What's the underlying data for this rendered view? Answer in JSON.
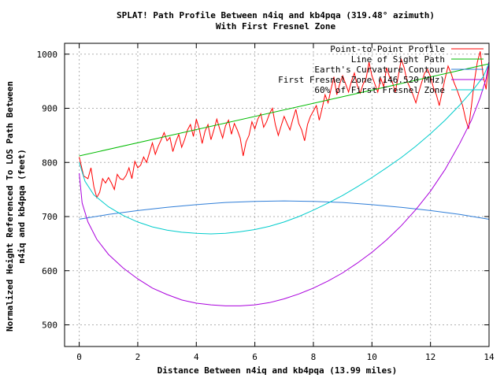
{
  "chart_data": {
    "type": "line",
    "title": "SPLAT! Path Profile Between n4iq and kb4pqa (319.48° azimuth)",
    "subtitle": "With First Fresnel Zone",
    "xlabel": "Distance Between n4iq and kb4pqa (13.99 miles)",
    "ylabel_line1": "Normalized Height Referenced To LOS Path Between",
    "ylabel_line2": "n4iq and kb4pqa (feet)",
    "xlim": [
      -0.5,
      14
    ],
    "ylim": [
      460,
      1020
    ],
    "xticks": [
      0,
      2,
      4,
      6,
      8,
      10,
      12,
      14
    ],
    "yticks": [
      500,
      600,
      700,
      800,
      900,
      1000
    ],
    "grid": true,
    "legend_position": "top-right",
    "series": [
      {
        "name": "Point-to-Point Profile",
        "color": "#ff0000",
        "x": [
          0,
          0.15,
          0.3,
          0.4,
          0.5,
          0.6,
          0.7,
          0.8,
          0.9,
          1.0,
          1.1,
          1.2,
          1.3,
          1.4,
          1.5,
          1.6,
          1.7,
          1.8,
          1.9,
          2.0,
          2.1,
          2.2,
          2.3,
          2.4,
          2.5,
          2.6,
          2.7,
          2.8,
          2.9,
          3.0,
          3.1,
          3.2,
          3.3,
          3.4,
          3.5,
          3.6,
          3.7,
          3.8,
          3.9,
          4.0,
          4.1,
          4.2,
          4.3,
          4.4,
          4.5,
          4.6,
          4.7,
          4.8,
          4.9,
          5.0,
          5.1,
          5.2,
          5.3,
          5.4,
          5.5,
          5.6,
          5.7,
          5.8,
          5.9,
          6.0,
          6.1,
          6.2,
          6.3,
          6.4,
          6.5,
          6.6,
          6.7,
          6.8,
          6.9,
          7.0,
          7.1,
          7.2,
          7.3,
          7.4,
          7.5,
          7.6,
          7.7,
          7.8,
          7.9,
          8.0,
          8.1,
          8.2,
          8.3,
          8.4,
          8.5,
          8.6,
          8.7,
          8.8,
          8.9,
          9.0,
          9.1,
          9.2,
          9.3,
          9.4,
          9.5,
          9.6,
          9.7,
          9.8,
          9.9,
          10.0,
          10.1,
          10.2,
          10.3,
          10.4,
          10.5,
          10.6,
          10.7,
          10.8,
          10.9,
          11.0,
          11.1,
          11.2,
          11.3,
          11.4,
          11.5,
          11.6,
          11.7,
          11.8,
          11.9,
          12.0,
          12.1,
          12.2,
          12.3,
          12.4,
          12.5,
          12.6,
          12.7,
          12.8,
          12.9,
          13.0,
          13.1,
          13.2,
          13.3,
          13.4,
          13.5,
          13.6,
          13.7,
          13.8,
          13.9,
          13.99
        ],
        "y": [
          810,
          775,
          770,
          790,
          755,
          735,
          745,
          770,
          762,
          772,
          762,
          750,
          778,
          770,
          768,
          776,
          790,
          770,
          802,
          790,
          795,
          810,
          800,
          818,
          836,
          815,
          830,
          842,
          855,
          840,
          846,
          820,
          838,
          852,
          828,
          842,
          860,
          870,
          848,
          880,
          862,
          835,
          858,
          870,
          842,
          860,
          880,
          862,
          845,
          868,
          878,
          852,
          872,
          860,
          845,
          812,
          838,
          850,
          875,
          862,
          880,
          890,
          865,
          875,
          890,
          900,
          870,
          850,
          868,
          885,
          872,
          860,
          880,
          898,
          872,
          860,
          840,
          870,
          885,
          895,
          905,
          878,
          900,
          925,
          910,
          935,
          958,
          925,
          945,
          960,
          945,
          930,
          950,
          965,
          942,
          928,
          945,
          955,
          985,
          960,
          945,
          930,
          955,
          940,
          975,
          958,
          948,
          930,
          960,
          990,
          975,
          950,
          938,
          925,
          910,
          930,
          948,
          965,
          972,
          958,
          938,
          925,
          905,
          930,
          955,
          978,
          965,
          948,
          935,
          920,
          905,
          880,
          862,
          905,
          950,
          985,
          1005,
          960,
          935,
          985
        ]
      },
      {
        "name": "Line of Sight Path",
        "color": "#00bb00",
        "x": [
          0,
          13.99
        ],
        "y": [
          812,
          982
        ]
      },
      {
        "name": "Earth's Curvature Contour",
        "color": "#2f7ed8",
        "x": [
          0,
          1,
          2,
          3,
          4,
          5,
          6,
          7,
          8,
          9,
          10,
          11,
          12,
          13,
          13.99
        ],
        "y": [
          695,
          704,
          711,
          717,
          722,
          726,
          728,
          729,
          728,
          726,
          722,
          717,
          711,
          704,
          695
        ]
      },
      {
        "name": "First Fresnel Zone (146.520 MHz)",
        "color": "#aa00dd",
        "x": [
          0,
          0.1,
          0.3,
          0.6,
          1,
          1.5,
          2,
          2.5,
          3,
          3.5,
          4,
          4.5,
          5,
          5.5,
          6,
          6.5,
          7,
          7.5,
          8,
          8.5,
          9,
          9.5,
          10,
          10.5,
          11,
          11.5,
          12,
          12.5,
          13,
          13.4,
          13.7,
          13.9,
          13.99
        ],
        "y": [
          780,
          725,
          690,
          658,
          630,
          605,
          585,
          568,
          556,
          546,
          540,
          537,
          535,
          535,
          537,
          541,
          548,
          557,
          568,
          581,
          596,
          614,
          634,
          657,
          683,
          713,
          747,
          787,
          835,
          878,
          920,
          955,
          985
        ]
      },
      {
        "name": "60% of First Fresnel Zone",
        "color": "#00cccc",
        "x": [
          0,
          0.2,
          0.5,
          1,
          1.5,
          2,
          2.5,
          3,
          3.5,
          4,
          4.5,
          5,
          5.5,
          6,
          6.5,
          7,
          7.5,
          8,
          8.5,
          9,
          9.5,
          10,
          10.5,
          11,
          11.5,
          12,
          12.5,
          13,
          13.5,
          13.8,
          13.99
        ],
        "y": [
          800,
          765,
          740,
          718,
          702,
          690,
          681,
          675,
          671,
          669,
          668,
          669,
          672,
          676,
          682,
          690,
          700,
          712,
          725,
          739,
          755,
          772,
          790,
          809,
          830,
          853,
          878,
          906,
          937,
          958,
          982
        ]
      }
    ]
  }
}
